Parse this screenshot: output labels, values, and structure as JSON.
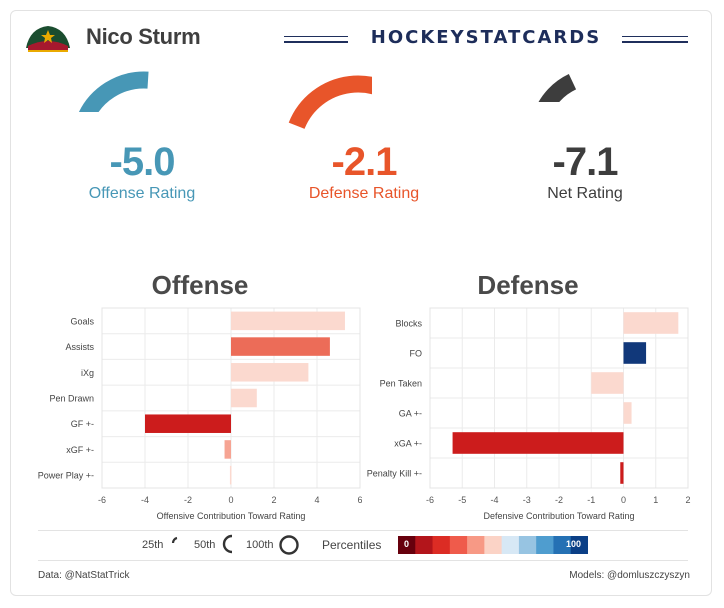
{
  "header": {
    "player_name": "Nico Sturm",
    "brand": "HOCKEYSTATCARDS",
    "logo_icon": "minnesota-wild-logo"
  },
  "ratings": {
    "offense": {
      "value": "-5.0",
      "label": "Offense Rating",
      "color": "#4797b6",
      "percentile": 0.2
    },
    "defense": {
      "value": "-2.1",
      "label": "Defense Rating",
      "color": "#e8552a",
      "percentile": 0.34
    },
    "net": {
      "value": "-7.1",
      "label": "Net Rating",
      "color": "#3d3d3d",
      "percentile": 0.12
    }
  },
  "chart_data": [
    {
      "type": "bar",
      "orientation": "horizontal",
      "title": "Offense",
      "xlabel": "Offensive Contribution Toward Rating",
      "xlim": [
        -6,
        6
      ],
      "xticks": [
        -6,
        -4,
        -2,
        0,
        2,
        4,
        6
      ],
      "categories": [
        "Goals",
        "Assists",
        "iXg",
        "Pen Drawn",
        "GF +-",
        "xGF +-",
        "Power Play +-"
      ],
      "values": [
        5.3,
        4.6,
        3.6,
        1.2,
        -4.0,
        -0.3,
        -0.05
      ],
      "colors": [
        "#fbd9cf",
        "#ec6c58",
        "#fbd9cf",
        "#fbd9cf",
        "#cc1c1c",
        "#f6a493",
        "#fbd9cf"
      ]
    },
    {
      "type": "bar",
      "orientation": "horizontal",
      "title": "Defense",
      "xlabel": "Defensive Contribution Toward Rating",
      "xlim": [
        -6,
        2
      ],
      "xticks": [
        -6,
        -5,
        -4,
        -3,
        -2,
        -1,
        0,
        1,
        2
      ],
      "categories": [
        "Blocks",
        "FO",
        "Pen Taken",
        "GA +-",
        "xGA +-",
        "Penalty Kill +-"
      ],
      "values": [
        1.7,
        0.7,
        -1.0,
        0.25,
        -5.3,
        -0.1
      ],
      "colors": [
        "#fbd9cf",
        "#11387a",
        "#fbd9cf",
        "#fbd9cf",
        "#cc1c1c",
        "#cc1c1c"
      ]
    }
  ],
  "legend": {
    "gauge_labels": [
      "25th",
      "50th",
      "100th"
    ],
    "percentiles_label": "Percentiles",
    "scale_min": "0",
    "scale_max": "100",
    "scale_colors": [
      "#67000d",
      "#b3151b",
      "#dc2c24",
      "#ef5b4b",
      "#f79985",
      "#fbd3c6",
      "#d7e8f5",
      "#97c4e2",
      "#4f9dcf",
      "#2571b4",
      "#0b3f86"
    ]
  },
  "footer": {
    "left": "Data: @NatStatTrick",
    "right": "Models: @domluszczyszyn"
  }
}
